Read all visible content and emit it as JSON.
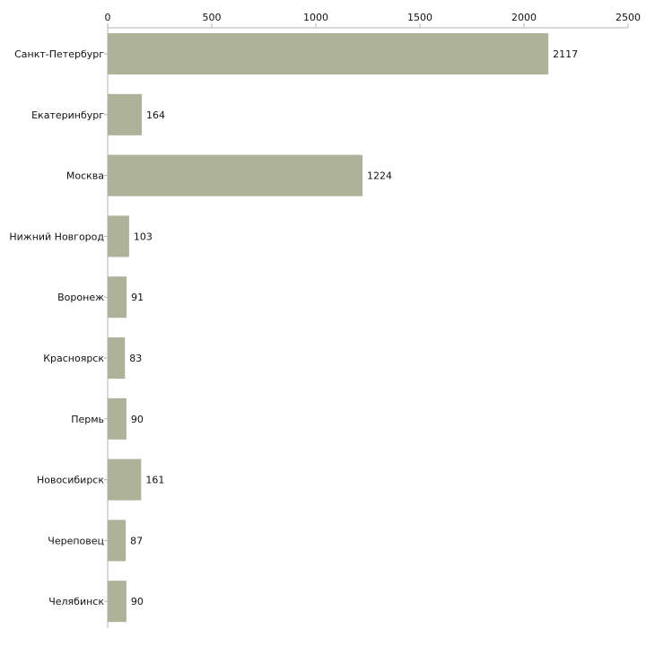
{
  "chart_data": {
    "type": "bar",
    "orientation": "horizontal",
    "title": "",
    "xlabel": "",
    "ylabel": "",
    "xlim": [
      0,
      2500
    ],
    "ticks": [
      0,
      500,
      1000,
      1500,
      2000,
      2500
    ],
    "tick_labels": [
      "0",
      "500",
      "1000",
      "1500",
      "2000",
      "2500"
    ],
    "axis_position": "top",
    "grid": false,
    "categories": [
      "Санкт-Петербург",
      "Екатеринбург",
      "Москва",
      "Нижний Новгород",
      "Воронеж",
      "Красноярск",
      "Пермь",
      "Новосибирск",
      "Череповец",
      "Челябинск"
    ],
    "values": [
      2117,
      164,
      1224,
      103,
      91,
      83,
      90,
      161,
      87,
      90
    ],
    "value_labels": [
      "2117",
      "164",
      "1224",
      "103",
      "91",
      "83",
      "90",
      "161",
      "87",
      "90"
    ],
    "bar_color": "#adb299",
    "axis_color": "#b3b3b3",
    "text_color": "#111111"
  }
}
